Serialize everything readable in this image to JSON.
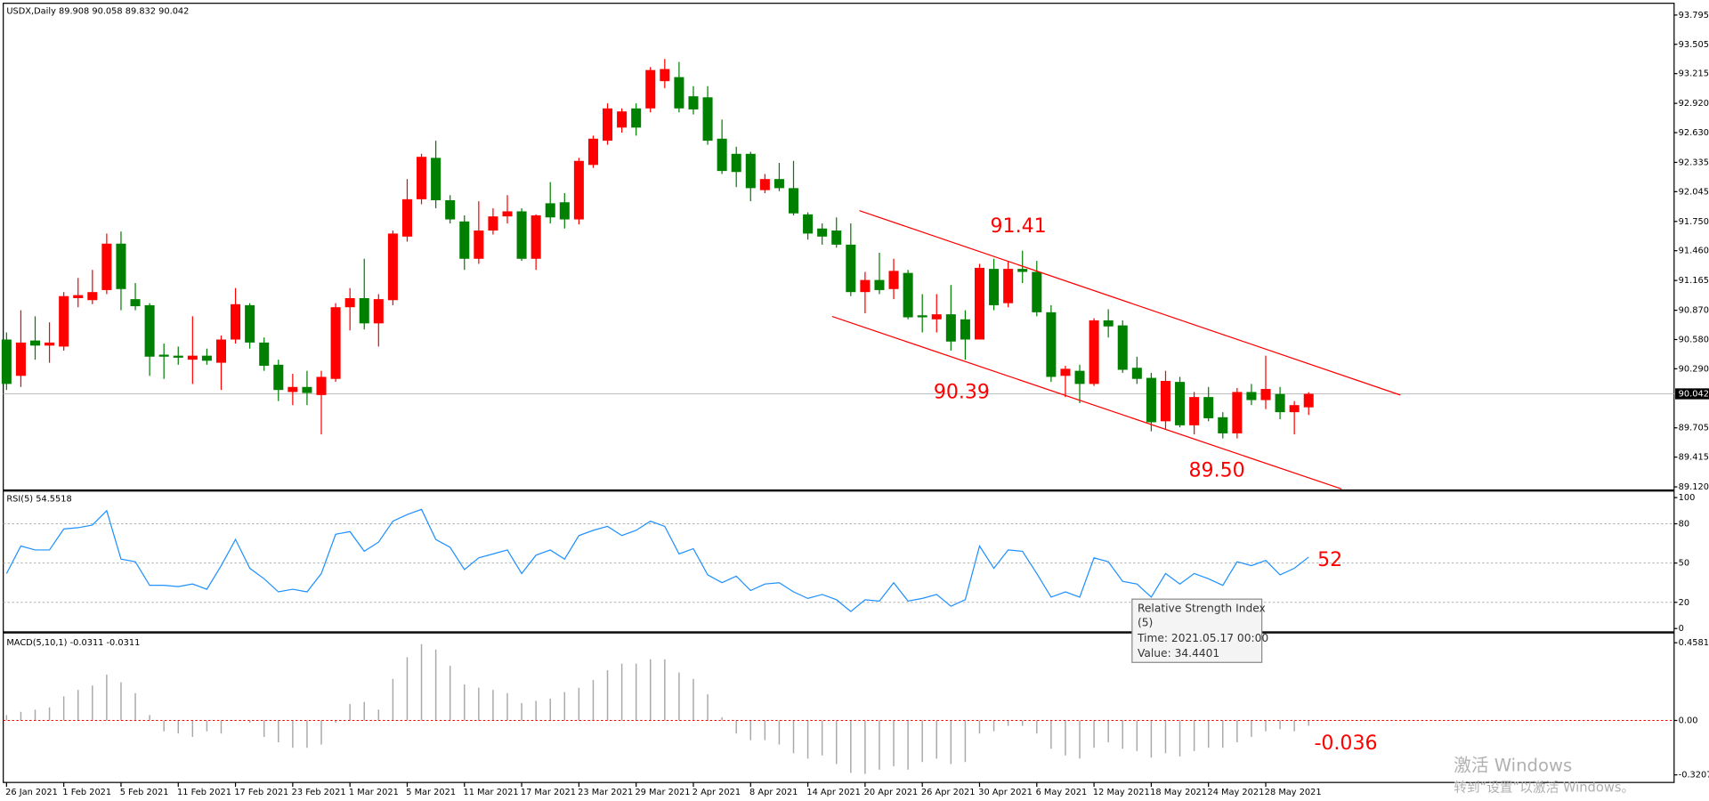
{
  "chart_data": [
    {
      "type": "candlestick",
      "title": "USDX,Daily  89.908 90.058 89.832 90.042",
      "categories": [
        "26 Jan 2021",
        null,
        null,
        null,
        "1 Feb 2021",
        null,
        null,
        null,
        "5 Feb 2021",
        null,
        null,
        null,
        "11 Feb 2021",
        null,
        null,
        null,
        "17 Feb 2021",
        null,
        null,
        null,
        "23 Feb 2021",
        null,
        null,
        null,
        "1 Mar 2021",
        null,
        null,
        null,
        "5 Mar 2021",
        null,
        null,
        null,
        "11 Mar 2021",
        null,
        null,
        null,
        "17 Mar 2021",
        null,
        null,
        null,
        "23 Mar 2021",
        null,
        null,
        null,
        "29 Mar 2021",
        null,
        null,
        null,
        "2 Apr 2021",
        null,
        null,
        null,
        "8 Apr 2021",
        null,
        null,
        null,
        "14 Apr 2021",
        null,
        null,
        null,
        "20 Apr 2021",
        null,
        null,
        null,
        "26 Apr 2021",
        null,
        null,
        null,
        "30 Apr 2021",
        null,
        null,
        null,
        "6 May 2021",
        null,
        null,
        null,
        "12 May 2021",
        null,
        null,
        null,
        "18 May 2021",
        null,
        null,
        null,
        "24 May 2021",
        null,
        null,
        null,
        "28 May 2021",
        null,
        null,
        null
      ],
      "open": [
        90.58,
        90.22,
        90.57,
        90.52,
        90.51,
        90.99,
        90.97,
        91.07,
        91.53,
        90.98,
        90.92,
        90.43,
        90.42,
        90.38,
        90.42,
        90.35,
        90.58,
        90.92,
        90.55,
        90.33,
        90.06,
        90.11,
        90.03,
        90.19,
        90.9,
        90.99,
        90.74,
        90.97,
        91.6,
        91.97,
        92.38,
        91.96,
        91.75,
        91.38,
        91.66,
        91.8,
        91.85,
        91.38,
        91.93,
        91.94,
        91.77,
        92.31,
        92.55,
        92.68,
        92.87,
        92.87,
        93.14,
        93.18,
        92.99,
        92.98,
        92.57,
        92.42,
        92.42,
        92.06,
        92.17,
        92.08,
        91.82,
        91.68,
        91.66,
        91.52,
        91.05,
        91.17,
        91.08,
        91.24,
        90.82,
        90.78,
        90.83,
        90.78,
        90.58,
        91.28,
        90.94,
        91.28,
        91.25,
        90.85,
        90.22,
        90.27,
        90.14,
        90.77,
        90.72,
        90.3,
        90.2,
        89.77,
        90.16,
        89.73,
        90.01,
        89.81,
        89.65,
        90.06,
        89.98,
        90.04,
        89.86,
        89.908
      ],
      "high": [
        90.65,
        90.87,
        90.81,
        90.75,
        91.05,
        91.19,
        91.27,
        91.63,
        91.65,
        91.14,
        90.94,
        90.54,
        90.51,
        90.81,
        90.49,
        90.62,
        91.09,
        90.94,
        90.6,
        90.38,
        90.24,
        90.27,
        90.27,
        90.94,
        91.09,
        91.38,
        91.03,
        91.66,
        92.17,
        92.42,
        92.55,
        92.01,
        91.81,
        91.95,
        91.88,
        92.01,
        91.88,
        91.82,
        92.14,
        92.03,
        92.38,
        92.6,
        92.92,
        92.87,
        92.92,
        93.28,
        93.36,
        93.33,
        93.09,
        93.09,
        92.76,
        92.49,
        92.44,
        92.22,
        92.33,
        92.35,
        91.84,
        91.73,
        91.79,
        91.73,
        91.25,
        91.44,
        91.38,
        91.27,
        91.03,
        91.03,
        91.12,
        90.87,
        91.33,
        91.38,
        91.36,
        91.46,
        91.36,
        90.92,
        90.32,
        90.33,
        90.79,
        90.88,
        90.77,
        90.41,
        90.25,
        90.27,
        90.21,
        90.06,
        90.11,
        89.86,
        90.1,
        90.14,
        90.42,
        90.11,
        89.97,
        90.058
      ],
      "low": [
        90.08,
        90.11,
        90.38,
        90.35,
        90.47,
        90.9,
        90.93,
        91.03,
        90.87,
        90.87,
        90.22,
        90.19,
        90.33,
        90.14,
        90.33,
        90.08,
        90.54,
        90.49,
        90.27,
        89.97,
        89.93,
        89.93,
        89.64,
        90.16,
        90.67,
        90.68,
        90.51,
        90.92,
        91.55,
        91.92,
        91.88,
        91.73,
        91.27,
        91.33,
        91.62,
        91.73,
        91.36,
        91.27,
        91.73,
        91.68,
        91.72,
        92.28,
        92.51,
        92.63,
        92.6,
        92.83,
        93.07,
        92.83,
        92.81,
        92.51,
        92.22,
        92.09,
        91.95,
        92.03,
        92.05,
        91.81,
        91.57,
        91.52,
        91.49,
        91.01,
        90.84,
        91.03,
        90.98,
        90.78,
        90.65,
        90.65,
        90.47,
        90.38,
        90.58,
        90.87,
        90.9,
        91.14,
        90.81,
        90.16,
        90.01,
        89.95,
        90.12,
        90.6,
        90.25,
        90.14,
        89.67,
        89.69,
        89.71,
        89.64,
        89.77,
        89.6,
        89.6,
        89.93,
        89.89,
        89.79,
        89.64,
        89.832
      ],
      "close": [
        90.14,
        90.55,
        90.52,
        90.55,
        91.01,
        91.02,
        91.05,
        91.53,
        91.08,
        90.91,
        90.41,
        90.41,
        90.4,
        90.42,
        90.37,
        90.58,
        90.93,
        90.55,
        90.32,
        90.08,
        90.11,
        90.05,
        90.21,
        90.9,
        90.99,
        90.74,
        90.98,
        91.63,
        91.97,
        92.39,
        91.96,
        91.77,
        91.38,
        91.66,
        91.8,
        91.85,
        91.38,
        91.81,
        91.79,
        91.77,
        92.35,
        92.57,
        92.87,
        92.84,
        92.68,
        93.25,
        93.26,
        92.87,
        92.86,
        92.55,
        92.25,
        92.24,
        92.08,
        92.17,
        92.08,
        91.83,
        91.63,
        91.6,
        91.52,
        91.05,
        91.17,
        91.07,
        91.26,
        90.8,
        90.8,
        90.83,
        90.56,
        90.58,
        91.29,
        90.92,
        91.28,
        91.25,
        90.85,
        90.21,
        90.29,
        90.14,
        90.77,
        90.71,
        90.28,
        90.19,
        89.76,
        90.17,
        89.73,
        90.01,
        89.8,
        89.65,
        90.06,
        89.98,
        90.09,
        89.86,
        89.93,
        90.042
      ],
      "up_color": "#ff0000",
      "down_color": "#008000",
      "ylim": [
        89.1,
        93.89
      ],
      "yticks": [
        93.795,
        93.505,
        93.215,
        {
          "value": 92.92,
          "label": "92.920"
        },
        {
          "value": 92.63,
          "label": "92.630"
        },
        92.335,
        92.045,
        {
          "value": 91.75,
          "label": "91.750"
        },
        {
          "value": 91.46,
          "label": "91.460"
        },
        91.165,
        {
          "value": 90.87,
          "label": "90.870"
        },
        {
          "value": 90.58,
          "label": "90.580"
        },
        {
          "value": 90.29,
          "label": "90.290"
        },
        89.705,
        89.415,
        {
          "value": 89.12,
          "label": "89.120"
        }
      ],
      "annotations": [
        "91.41",
        "90.39",
        "89.50"
      ],
      "annotation_color": "#ff0000"
    },
    {
      "type": "line",
      "title": "RSI(5) 54.5518",
      "values": [
        42,
        63,
        60,
        60,
        76,
        77,
        79,
        90,
        53,
        51,
        33,
        33,
        32,
        34,
        30,
        48,
        68,
        46,
        38,
        28,
        30,
        28,
        42,
        72,
        74,
        59,
        66,
        82,
        87,
        91,
        68,
        62,
        45,
        54,
        57,
        60,
        42,
        56,
        60,
        53,
        71,
        75,
        78,
        71,
        75,
        82,
        78,
        57,
        61,
        41,
        35,
        40,
        29,
        34,
        35,
        28,
        23,
        26,
        22,
        13,
        22,
        21,
        35,
        21,
        23,
        26,
        17,
        22,
        63,
        46,
        60,
        59,
        42,
        24,
        28,
        24,
        54,
        51,
        36,
        34,
        24,
        42,
        34,
        42,
        38,
        33,
        51,
        48,
        52,
        41,
        46,
        54.5518
      ],
      "color": "#1e90ff",
      "ylim": [
        -1.7,
        103.3
      ],
      "yticks": [
        100,
        80,
        50,
        20,
        0
      ],
      "levels": [
        80,
        50,
        20
      ],
      "annotations": [
        "52"
      ],
      "annotation_color": "#ff0000"
    },
    {
      "type": "bar",
      "title": "MACD(5,10,1) -0.0311 -0.0311",
      "values": [
        0.032,
        0.051,
        0.064,
        0.077,
        0.142,
        0.18,
        0.206,
        0.27,
        0.225,
        0.161,
        0.032,
        -0.064,
        -0.077,
        -0.097,
        -0.064,
        -0.077,
        0.002,
        -0.013,
        -0.097,
        -0.129,
        -0.161,
        -0.161,
        -0.142,
        -0.013,
        0.097,
        0.109,
        0.064,
        0.245,
        0.373,
        0.45,
        0.418,
        0.322,
        0.212,
        0.193,
        0.18,
        0.161,
        0.103,
        0.116,
        0.129,
        0.167,
        0.193,
        0.238,
        0.296,
        0.335,
        0.335,
        0.36,
        0.36,
        0.283,
        0.245,
        0.154,
        0.019,
        -0.077,
        -0.116,
        -0.116,
        -0.142,
        -0.193,
        -0.225,
        -0.206,
        -0.257,
        -0.309,
        -0.315,
        -0.29,
        -0.27,
        -0.29,
        -0.245,
        -0.225,
        -0.257,
        -0.245,
        -0.077,
        -0.064,
        -0.032,
        -0.032,
        -0.077,
        -0.167,
        -0.206,
        -0.225,
        -0.161,
        -0.129,
        -0.167,
        -0.18,
        -0.219,
        -0.193,
        -0.212,
        -0.18,
        -0.161,
        -0.161,
        -0.129,
        -0.097,
        -0.064,
        -0.051,
        -0.064,
        -0.0311
      ],
      "color": "#a9a9a9",
      "zero_line_color": "#ff0000",
      "ylim": [
        -0.359,
        0.503
      ],
      "yticks": [
        0.4581,
        {
          "value": 0,
          "label": "0.00"
        },
        -0.3207
      ],
      "annotations": [
        "-0.036"
      ],
      "annotation_color": "#ff0000"
    }
  ],
  "tooltip": {
    "title": "Relative Strength Index",
    "params": "(5)",
    "time": "Time: 2021.05.17 00:00",
    "value": "Value: 34.4401"
  },
  "watermark": {
    "line1": "激活 Windows",
    "line2": "转到“设置”以激活 Windows。"
  }
}
